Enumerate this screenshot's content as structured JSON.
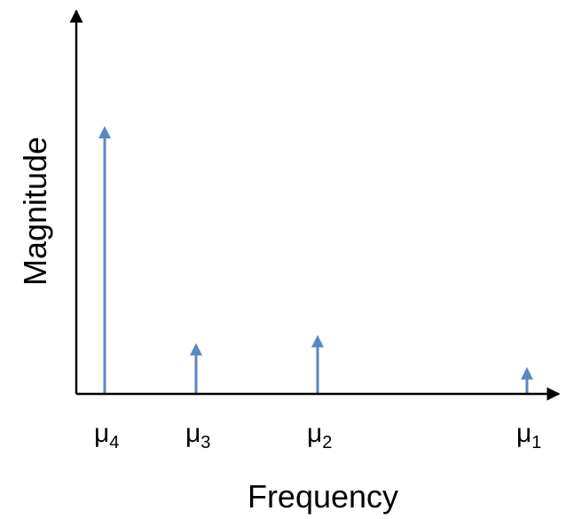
{
  "chart_data": {
    "type": "bar",
    "categories": [
      "μ4",
      "μ3",
      "μ2",
      "μ1"
    ],
    "category_labels": [
      {
        "base": "μ",
        "sub": "4"
      },
      {
        "base": "μ",
        "sub": "3"
      },
      {
        "base": "μ",
        "sub": "2"
      },
      {
        "base": "μ",
        "sub": "1"
      }
    ],
    "values": [
      1.0,
      0.19,
      0.22,
      0.1
    ],
    "xlabel": "Frequency",
    "ylabel": "Magnitude",
    "ylim": [
      0,
      1.0
    ],
    "grid": false,
    "mark_style": "arrow stems",
    "colors": {
      "stem": "#5b87c2",
      "axis": "#000000"
    }
  }
}
